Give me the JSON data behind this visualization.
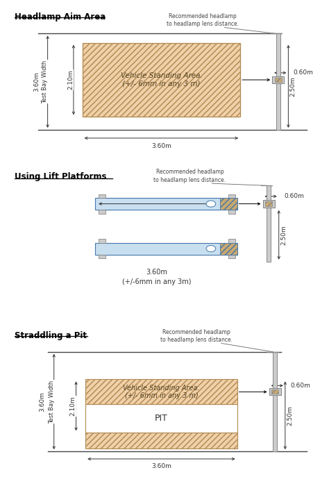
{
  "title1": "Headlamp Aim Area",
  "title2": "Using Lift Platforms",
  "title3": "Straddling a Pit",
  "bg_color": "#ffffff",
  "tan_fill": "#f0d0a8",
  "tan_edge": "#b08850",
  "blue_fill": "#c8dff0",
  "blue_edge": "#4477aa",
  "white_fill": "#ffffff",
  "gray_fill": "#cccccc",
  "gray_edge": "#888888",
  "hatch_color": "#c8a870",
  "dim_color": "#333333",
  "line_color": "#444444",
  "recommended_text": "Recommended headlamp\nto headlamp lens distance.",
  "vehicle_text": "Vehicle Standing Area.\n(+/- 6mm in any 3 m)",
  "lift_dim_text": "3.60m\n(+/-6mm in any 3m)",
  "pit_label": "PIT",
  "dim_360": "3.60m",
  "dim_210": "2.10m",
  "dim_250": "2.50m",
  "dim_060": "0.60m",
  "dim_360_bay": "3.60m",
  "bay_width_label": "Test Bay Width",
  "font_size_title": 8.5,
  "font_size_dim": 6.5,
  "font_size_body": 7.5,
  "font_size_small": 5.5
}
